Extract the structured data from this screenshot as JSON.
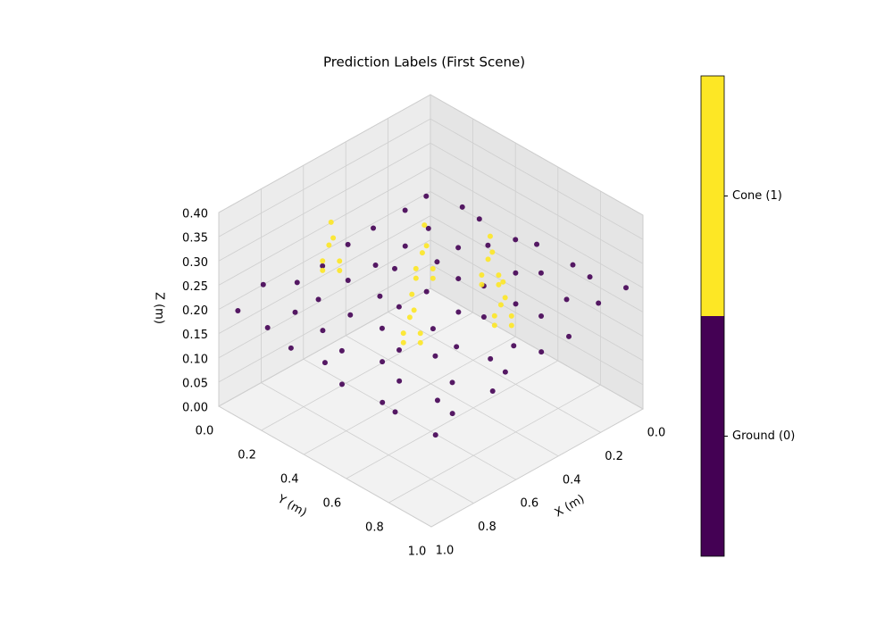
{
  "chart_data": {
    "type": "scatter3d",
    "title": "Prediction Labels (First Scene)",
    "x_label": "X (m)",
    "y_label": "Y (m)",
    "z_label": "Z (m)",
    "xlim": [
      0,
      1
    ],
    "ylim": [
      0,
      1
    ],
    "zlim": [
      0,
      0.4
    ],
    "xticks": [
      {
        "value": 0,
        "label": "0.0"
      },
      0.2,
      0.4,
      0.6,
      0.8,
      {
        "value": 1,
        "label": "1.0"
      }
    ],
    "yticks": [
      {
        "value": 0,
        "label": "0.0"
      },
      0.2,
      0.4,
      0.6,
      0.8,
      {
        "value": 1,
        "label": "1.0"
      }
    ],
    "zticks": [
      {
        "value": 0,
        "label": "0.00"
      },
      {
        "value": 0.05,
        "label": "0.05"
      },
      {
        "value": 0.1,
        "label": "0.10"
      },
      {
        "value": 0.15,
        "label": "0.15"
      },
      {
        "value": 0.2,
        "label": "0.20"
      },
      {
        "value": 0.25,
        "label": "0.25"
      },
      {
        "value": 0.3,
        "label": "0.30"
      },
      {
        "value": 0.35,
        "label": "0.35"
      },
      {
        "value": 0.4,
        "label": "0.40"
      }
    ],
    "grid": true,
    "series": [
      {
        "color": "#440154",
        "x": [
          0.05,
          0.18,
          0.29,
          0.44,
          0.55,
          0.7,
          0.81,
          0.96,
          0.03,
          0.16,
          0.31,
          0.42,
          0.57,
          0.68,
          0.83,
          0.94,
          0.06,
          0.19,
          0.28,
          0.45,
          0.54,
          0.71,
          0.8,
          0.97,
          0.04,
          0.15,
          0.32,
          0.43,
          0.58,
          0.67,
          0.84,
          0.95,
          0.05,
          0.18,
          0.29,
          0.44,
          0.55,
          0.7,
          0.81,
          0.96,
          0.03,
          0.16,
          0.31,
          0.42,
          0.57,
          0.68,
          0.83,
          0.94,
          0.06,
          0.19,
          0.28,
          0.45,
          0.54,
          0.71,
          0.8,
          0.97,
          0.04,
          0.15,
          0.32,
          0.43,
          0.58,
          0.67,
          0.84,
          0.95
        ],
        "y": [
          0.03,
          0.06,
          0.02,
          0.05,
          0.04,
          0.07,
          0.02,
          0.05,
          0.18,
          0.15,
          0.19,
          0.16,
          0.18,
          0.15,
          0.19,
          0.17,
          0.29,
          0.32,
          0.31,
          0.28,
          0.3,
          0.33,
          0.29,
          0.31,
          0.44,
          0.42,
          0.45,
          0.41,
          0.43,
          0.44,
          0.42,
          0.45,
          0.55,
          0.58,
          0.54,
          0.57,
          0.56,
          0.55,
          0.58,
          0.54,
          0.7,
          0.68,
          0.71,
          0.67,
          0.69,
          0.7,
          0.68,
          0.71,
          0.81,
          0.83,
          0.8,
          0.84,
          0.82,
          0.81,
          0.83,
          0.8,
          0.96,
          0.94,
          0.97,
          0.95,
          0.93,
          0.96,
          0.94,
          0.97
        ],
        "z": [
          0.21,
          0.22,
          0.2,
          0.21,
          0.19,
          0.2,
          0.21,
          0.2,
          0.22,
          0.2,
          0.21,
          0.19,
          0.2,
          0.18,
          0.2,
          0.19,
          0.23,
          0.21,
          0.2,
          0.22,
          0.19,
          0.2,
          0.18,
          0.19,
          0.22,
          0.23,
          0.21,
          0.2,
          0.21,
          0.19,
          0.18,
          0.19,
          0.24,
          0.22,
          0.21,
          0.2,
          0.19,
          0.18,
          0.19,
          0.17,
          0.23,
          0.24,
          0.22,
          0.21,
          0.19,
          0.2,
          0.18,
          0.17,
          0.24,
          0.23,
          0.21,
          0.2,
          0.19,
          0.18,
          0.17,
          0.18,
          0.25,
          0.24,
          0.22,
          0.21,
          0.2,
          0.19,
          0.18,
          0.17
        ]
      },
      {
        "color": "#fde725",
        "x": [
          0.61,
          0.59,
          0.63,
          0.57,
          0.65,
          0.61,
          0.61,
          0.42,
          0.4,
          0.44,
          0.38,
          0.46,
          0.42,
          0.42,
          0.29,
          0.27,
          0.31,
          0.25,
          0.33,
          0.29,
          0.29,
          0.68,
          0.66,
          0.7,
          0.64,
          0.72,
          0.68,
          0.68,
          0.39,
          0.37,
          0.41,
          0.35,
          0.43,
          0.39,
          0.39
        ],
        "y": [
          0.14,
          0.13,
          0.15,
          0.14,
          0.14,
          0.1,
          0.18,
          0.39,
          0.38,
          0.4,
          0.39,
          0.39,
          0.35,
          0.43,
          0.57,
          0.56,
          0.58,
          0.57,
          0.57,
          0.53,
          0.61,
          0.59,
          0.58,
          0.6,
          0.59,
          0.59,
          0.55,
          0.63,
          0.73,
          0.72,
          0.74,
          0.73,
          0.73,
          0.69,
          0.77
        ],
        "z": [
          0.32,
          0.28,
          0.28,
          0.23,
          0.23,
          0.23,
          0.23,
          0.33,
          0.28,
          0.28,
          0.23,
          0.23,
          0.23,
          0.23,
          0.32,
          0.28,
          0.28,
          0.23,
          0.23,
          0.23,
          0.23,
          0.3,
          0.26,
          0.26,
          0.21,
          0.21,
          0.21,
          0.21,
          0.29,
          0.25,
          0.25,
          0.21,
          0.21,
          0.21,
          0.21
        ]
      }
    ],
    "colorbar": {
      "lim": [
        -0.5,
        1.5
      ],
      "ticks": [
        {
          "value": 0,
          "label": "Ground (0)"
        },
        {
          "value": 1,
          "label": "Cone (1)"
        }
      ]
    }
  }
}
